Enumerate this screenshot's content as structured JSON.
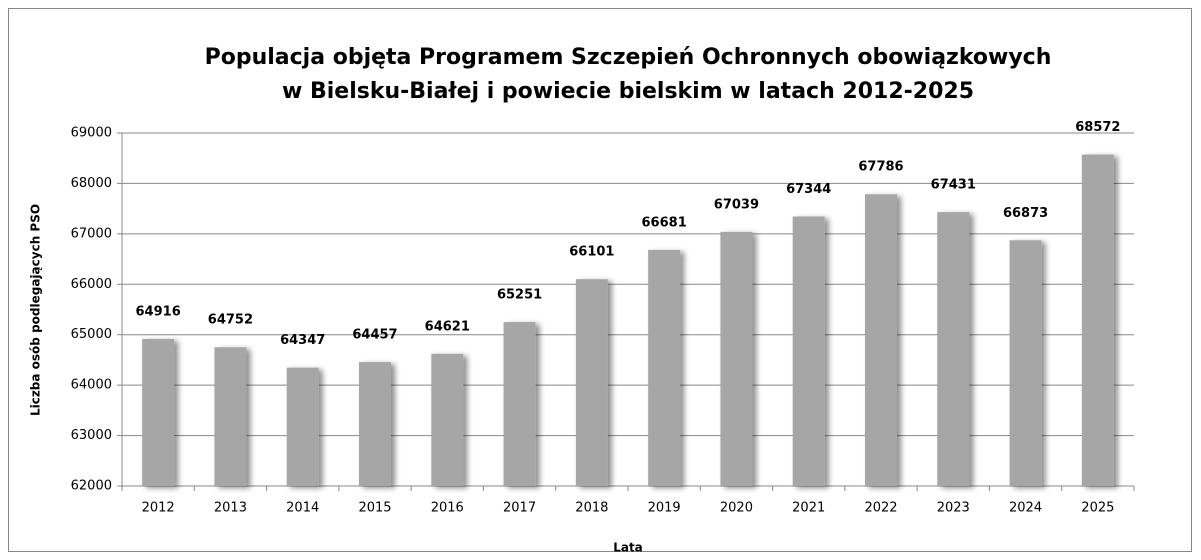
{
  "chart_data": {
    "type": "bar",
    "title": [
      "Populacja objęta Programem Szczepień Ochronnych obowiązkowych",
      "w Bielsku-Białej i powiecie bielskim w latach 2012-2025"
    ],
    "x_label": "Lata",
    "y_label": "Liczba osób podlegających PSO",
    "categories": [
      "2012",
      "2013",
      "2014",
      "2015",
      "2016",
      "2017",
      "2018",
      "2019",
      "2020",
      "2021",
      "2022",
      "2023",
      "2024",
      "2025"
    ],
    "values": [
      64916,
      64752,
      64347,
      64457,
      64621,
      65251,
      66101,
      66681,
      67039,
      67344,
      67786,
      67431,
      66873,
      68572
    ],
    "color": "#a6a6a6",
    "ylim": [
      62000,
      69000
    ],
    "yticks": [
      62000,
      63000,
      64000,
      65000,
      66000,
      67000,
      68000,
      69000
    ],
    "grid": true
  }
}
